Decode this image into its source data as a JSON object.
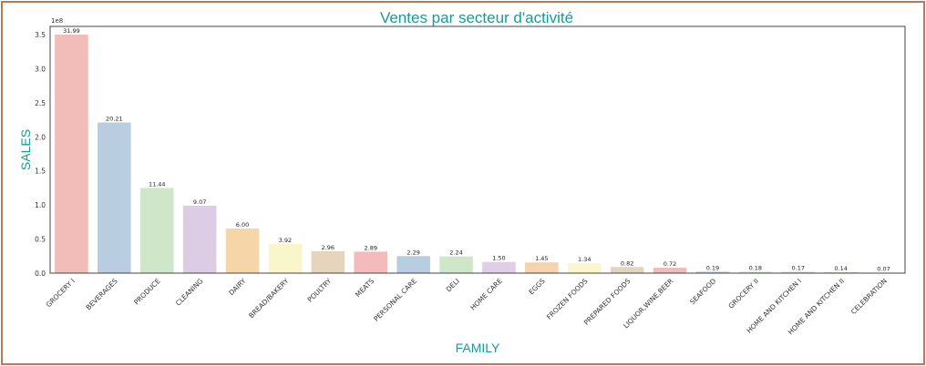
{
  "chart_data": {
    "type": "bar",
    "title": "Ventes par secteur d'activité",
    "xlabel": "FAMILY",
    "ylabel": "SALES",
    "y_scale_note": "1e8",
    "ylim": [
      0,
      3.62
    ],
    "yticks": [
      "0.0",
      "0.5",
      "1.0",
      "1.5",
      "2.0",
      "2.5",
      "3.0",
      "3.5"
    ],
    "categories": [
      "GROCERY I",
      "BEVERAGES",
      "PRODUCE",
      "CLEANING",
      "DAIRY",
      "BREAD/BAKERY",
      "POULTRY",
      "MEATS",
      "PERSONAL CARE",
      "DELI",
      "HOME CARE",
      "EGGS",
      "FROZEN FOODS",
      "PREPARED FOODS",
      "LIQUOR,WINE,BEER",
      "SEAFOOD",
      "GROCERY II",
      "HOME AND KITCHEN I",
      "HOME AND KITCHEN II",
      "CELEBRATION"
    ],
    "values": [
      3.5,
      2.21,
      1.25,
      0.99,
      0.655,
      0.428,
      0.323,
      0.315,
      0.25,
      0.245,
      0.164,
      0.158,
      0.146,
      0.09,
      0.079,
      0.021,
      0.02,
      0.019,
      0.015,
      0.008
    ],
    "data_labels": [
      "31.99",
      "20.21",
      "11.44",
      "9.07",
      "6.00",
      "3.92",
      "2.96",
      "2.89",
      "2.29",
      "2.24",
      "1.50",
      "1.45",
      "1.34",
      "0.82",
      "0.72",
      "0.19",
      "0.18",
      "0.17",
      "0.14",
      "0.07"
    ],
    "colors": [
      "#f2bcb8",
      "#b8cde0",
      "#cfe6c8",
      "#dccde4",
      "#f6d5a8",
      "#faf6cc",
      "#e6d4bd",
      "#f3bcbb",
      "#b9cde1",
      "#cfe6c8",
      "#dfcee5",
      "#f6d3ae",
      "#fbf6cc",
      "#e3d4be",
      "#f2bbbb",
      "#bccdde",
      "#cfe5c8",
      "#dccde4",
      "#f5d6ab",
      "#faf6cd"
    ],
    "grid": false,
    "legend": "none"
  }
}
